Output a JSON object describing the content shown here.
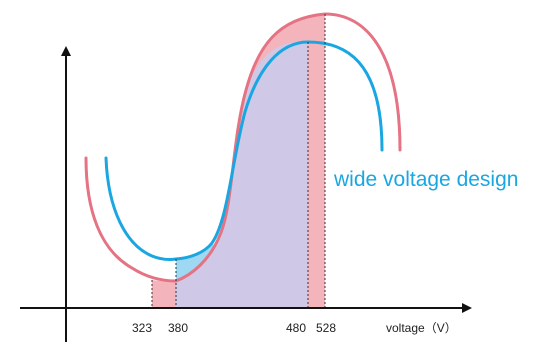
{
  "diagram": {
    "annotation": "wide voltage design",
    "x_axis_label": "voltage（V）",
    "ticks": [
      "323",
      "380",
      "480",
      "528"
    ],
    "colors": {
      "outer_curve": "#e57384",
      "inner_curve": "#1aa7e1",
      "outer_fill": "#f3b4bc",
      "inner_fill": "#cfc8e6",
      "low_end_fill": "#9ed8f2",
      "annotation_text": "#1aa7e1",
      "axis": "#111111"
    }
  }
}
